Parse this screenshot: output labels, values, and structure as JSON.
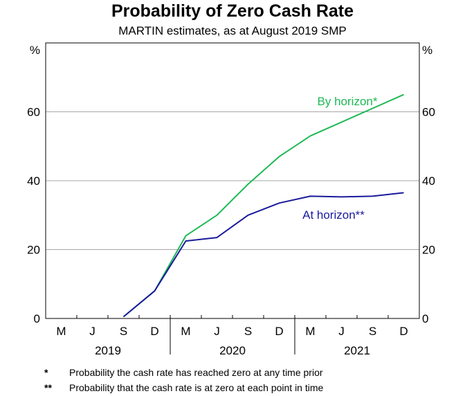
{
  "title": "Probability of Zero Cash Rate",
  "subtitle": "MARTIN estimates, as at August 2019 SMP",
  "colors": {
    "by_horizon": "#1db954",
    "at_horizon": "#1a1a9c",
    "grid": "#a6a6a6",
    "axis": "#000000"
  },
  "chart_data": {
    "type": "line",
    "title": "Probability of Zero Cash Rate",
    "subtitle": "MARTIN estimates, as at August 2019 SMP",
    "y_unit": "%",
    "ylim": [
      0,
      80
    ],
    "yticks": [
      0,
      20,
      40,
      60
    ],
    "grid": true,
    "x_months": [
      "Sep 2019",
      "Dec 2019",
      "Mar 2020",
      "Jun 2020",
      "Sep 2020",
      "Dec 2020",
      "Mar 2021",
      "Jun 2021",
      "Sep 2021",
      "Dec 2021"
    ],
    "x_tick_labels": [
      "M",
      "J",
      "S",
      "D",
      "M",
      "J",
      "S",
      "D",
      "M",
      "J",
      "S",
      "D"
    ],
    "x_year_labels": [
      "2019",
      "2020",
      "2021"
    ],
    "series": [
      {
        "name": "By horizon*",
        "values": [
          0.5,
          8,
          24,
          30,
          39,
          47,
          53,
          57,
          61,
          65
        ]
      },
      {
        "name": "At horizon**",
        "values": [
          0.5,
          8,
          22.5,
          23.5,
          30,
          33.5,
          35.5,
          35.3,
          35.5,
          36.5
        ]
      }
    ]
  },
  "footnotes": [
    {
      "mark": "*",
      "text": "Probability the cash rate has reached zero at any time prior"
    },
    {
      "mark": "**",
      "text": "Probability that the cash rate is at zero at each point in time"
    }
  ]
}
